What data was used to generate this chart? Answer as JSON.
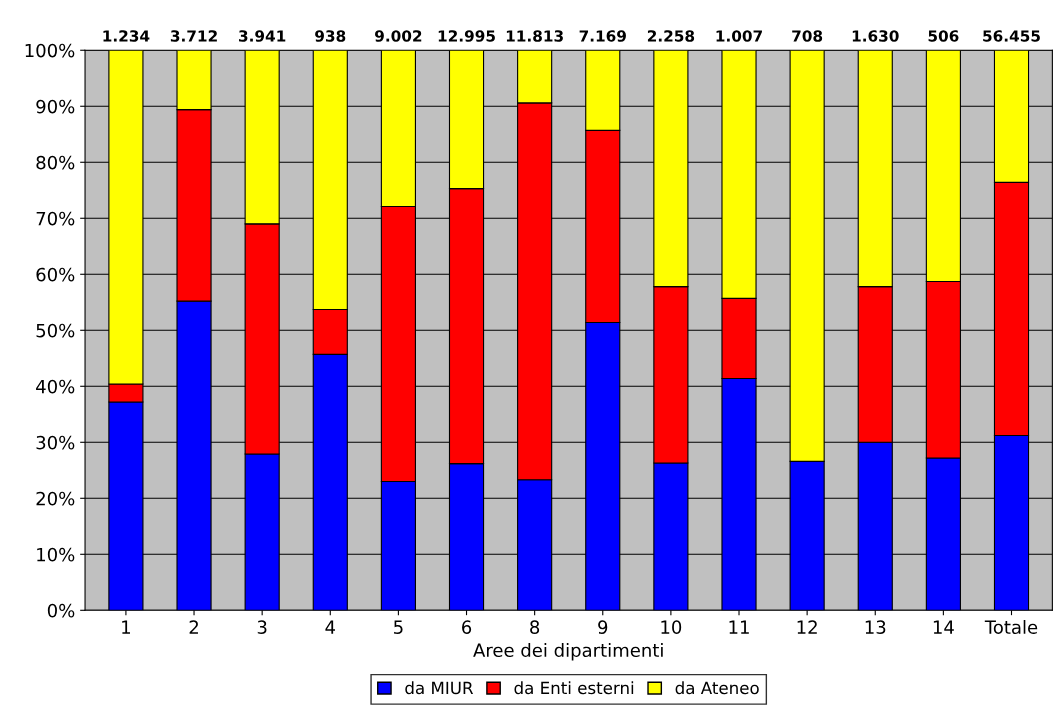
{
  "chart_data": {
    "type": "bar",
    "stacked": true,
    "xlabel": "Aree dei dipartimenti",
    "categories": [
      "1",
      "2",
      "3",
      "4",
      "5",
      "6",
      "8",
      "9",
      "10",
      "11",
      "12",
      "13",
      "14",
      "Totale"
    ],
    "series": [
      {
        "name": "da MIUR",
        "color": "#0000ff",
        "values": [
          37.2,
          55.2,
          27.9,
          45.7,
          23.0,
          26.2,
          23.3,
          51.4,
          26.3,
          41.4,
          26.6,
          30.0,
          27.2,
          31.2
        ]
      },
      {
        "name": "da Enti esterni",
        "color": "#ff0000",
        "values": [
          3.2,
          34.2,
          41.1,
          8.0,
          49.1,
          49.1,
          67.3,
          34.3,
          31.5,
          14.3,
          0,
          27.8,
          31.5,
          45.2
        ]
      },
      {
        "name": "da Ateneo",
        "color": "#ffff00",
        "values": [
          59.6,
          10.6,
          31.0,
          46.3,
          27.9,
          24.7,
          9.4,
          14.3,
          42.2,
          44.3,
          73.4,
          42.2,
          41.3,
          23.6
        ]
      }
    ],
    "annotations": [
      {
        "text": "1.234",
        "x": "1",
        "y": 100
      },
      {
        "text": "3.712",
        "x": "2",
        "y": 100
      },
      {
        "text": "3.941",
        "x": "3",
        "y": 100
      },
      {
        "text": "938",
        "x": "4",
        "y": 100
      },
      {
        "text": "9.002",
        "x": "5",
        "y": 100
      },
      {
        "text": "12.995",
        "x": "6",
        "y": 100
      },
      {
        "text": "11.813",
        "x": "8",
        "y": 100
      },
      {
        "text": "7.169",
        "x": "9",
        "y": 100
      },
      {
        "text": "2.258",
        "x": "10",
        "y": 100
      },
      {
        "text": "1.007",
        "x": "11",
        "y": 100
      },
      {
        "text": "708",
        "x": "12",
        "y": 100
      },
      {
        "text": "1.630",
        "x": "13",
        "y": 100
      },
      {
        "text": "506",
        "x": "14",
        "y": 100
      },
      {
        "text": "56.455",
        "x": "Totale",
        "y": 100
      }
    ],
    "ylim": [
      0,
      100
    ],
    "yticks": [
      {
        "value": 0,
        "label": "0%"
      },
      {
        "value": 10,
        "label": "10%"
      },
      {
        "value": 20,
        "label": "20%"
      },
      {
        "value": 30,
        "label": "30%"
      },
      {
        "value": 40,
        "label": "40%"
      },
      {
        "value": 50,
        "label": "50%"
      },
      {
        "value": 60,
        "label": "60%"
      },
      {
        "value": 70,
        "label": "70%"
      },
      {
        "value": 80,
        "label": "80%"
      },
      {
        "value": 90,
        "label": "90%"
      },
      {
        "value": 100,
        "label": "100%"
      }
    ],
    "grid": "y",
    "legend": "bottom"
  }
}
